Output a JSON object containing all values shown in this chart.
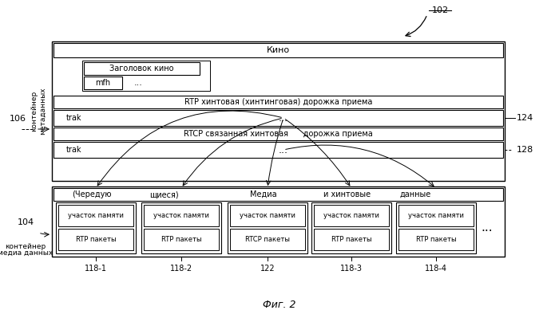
{
  "fig_label": "Фиг. 2",
  "label_102": "102",
  "label_106": "106",
  "label_124": "124",
  "label_128": "128",
  "label_104": "104",
  "label_118_1": "118-1",
  "label_118_2": "118-2",
  "label_122": "122",
  "label_118_3": "118-3",
  "label_118_4": "118-4",
  "text_kino": "Кино",
  "text_header": "Заголовок кино",
  "text_mfh": "mfh",
  "text_dots": "...",
  "text_rtp_hint": "RTP хинтовая (хинтинговая) дорожка приема",
  "text_trak": "trak",
  "text_rtcp_hint": "RTCP связанная хинтовая      дорожка приема",
  "text_interleaved_parts": [
    "(Чередую",
    "щиеся)",
    "Медиа",
    "и хинтовые",
    "данные"
  ],
  "text_chunk_mem": "участок памяти",
  "text_rtp_packets": "RTP пакеты",
  "text_rtcp_packets": "RTCP пакеты",
  "text_metadata_line1": "контейнер",
  "text_metadata_line2": "метаданных",
  "text_media_line1": "контейнер",
  "text_media_line2": "медиа данных",
  "bg_color": "#ffffff"
}
